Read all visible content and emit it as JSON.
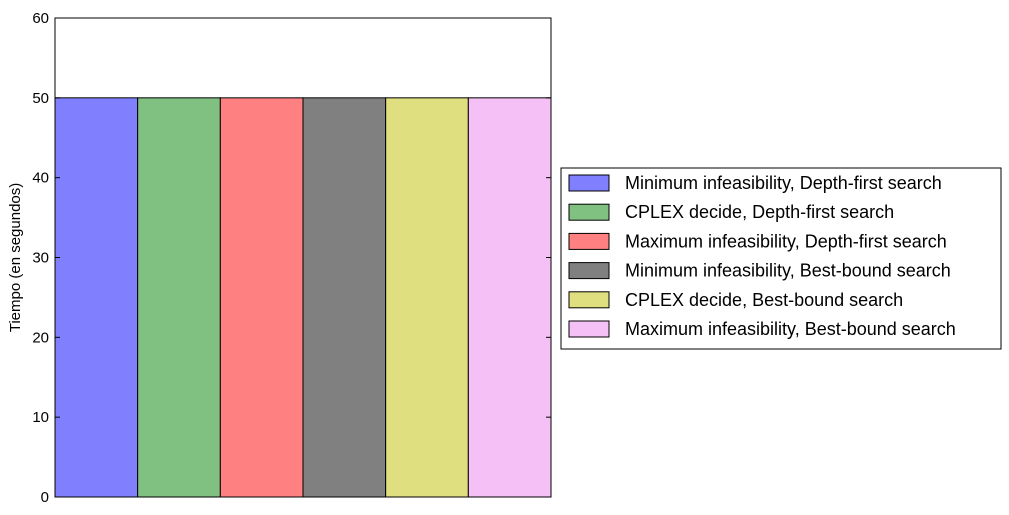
{
  "chart_data": {
    "type": "bar",
    "title": "",
    "xlabel": "",
    "ylabel": "Tiempo (en segundos)",
    "ylim": [
      0,
      60
    ],
    "yticks": [
      0,
      10,
      20,
      30,
      40,
      50,
      60
    ],
    "grid": false,
    "legend_position": "right",
    "series": [
      {
        "name": "Minimum infeasibility, Depth-first search",
        "value": 50,
        "color": "#8080ff"
      },
      {
        "name": "CPLEX decide, Depth-first search",
        "value": 50,
        "color": "#80c080"
      },
      {
        "name": "Maximum infeasibility, Depth-first search",
        "value": 50,
        "color": "#ff8080"
      },
      {
        "name": "Minimum infeasibility, Best-bound search",
        "value": 50,
        "color": "#808080"
      },
      {
        "name": "CPLEX decide, Best-bound search",
        "value": 50,
        "color": "#dfdf80"
      },
      {
        "name": "Maximum infeasibility, Best-bound search",
        "value": 50,
        "color": "#f5c0f5"
      }
    ]
  }
}
